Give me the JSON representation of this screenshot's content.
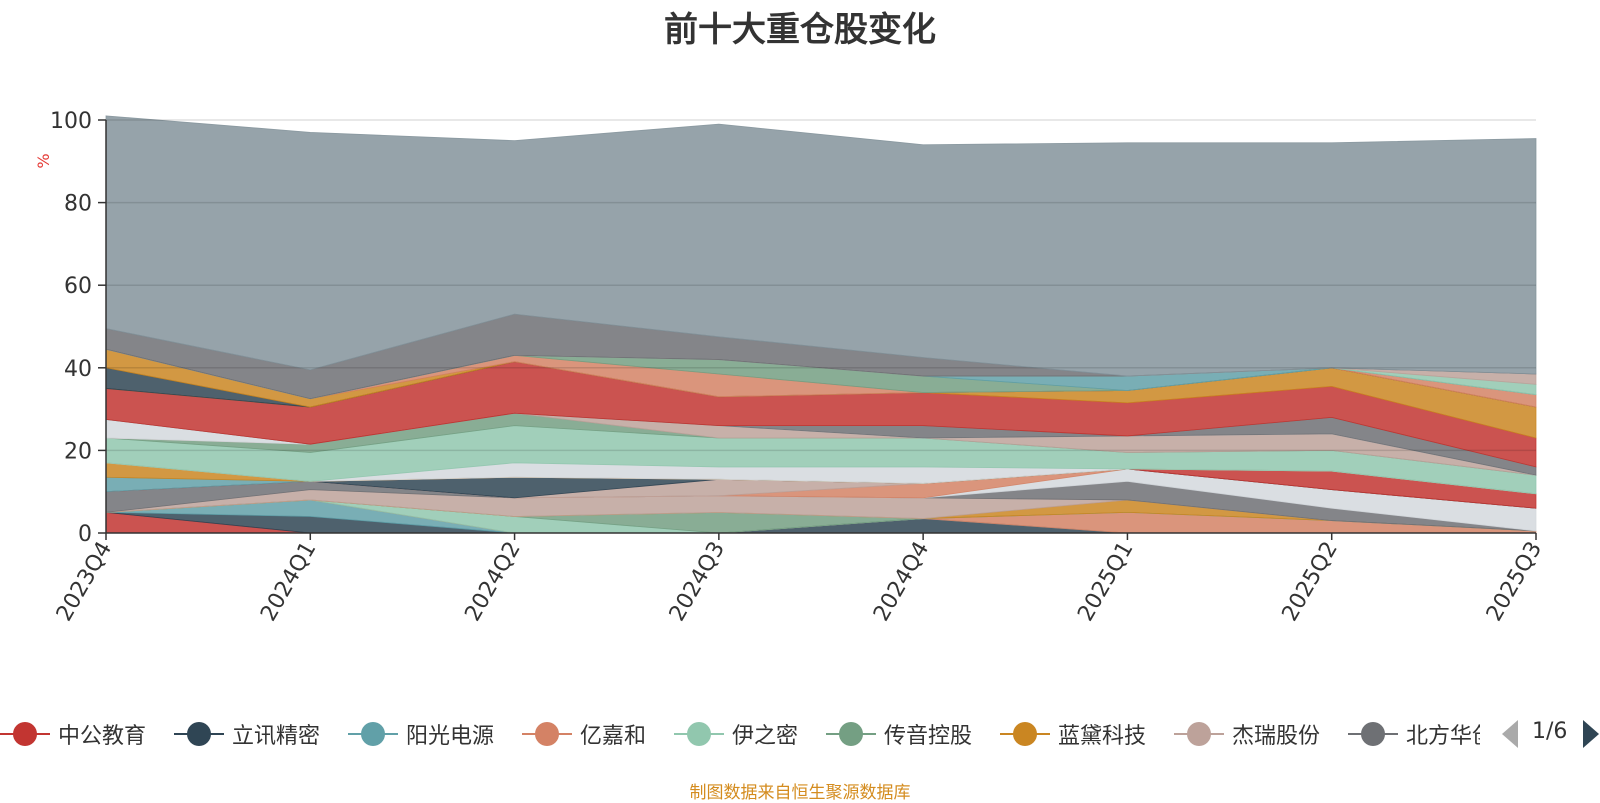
{
  "title": "前十大重仓股变化",
  "footer": "制图数据来自恒生聚源数据库",
  "pager": {
    "text": "1/6"
  },
  "legend": [
    {
      "name": "中公教育",
      "color": "#c23531"
    },
    {
      "name": "立讯精密",
      "color": "#2f4554"
    },
    {
      "name": "阳光电源",
      "color": "#61a0a8"
    },
    {
      "name": "亿嘉和",
      "color": "#d48265"
    },
    {
      "name": "伊之密",
      "color": "#91c7ae"
    },
    {
      "name": "传音控股",
      "color": "#749f83"
    },
    {
      "name": "蓝黛科技",
      "color": "#ca8622"
    },
    {
      "name": "杰瑞股份",
      "color": "#bda29a"
    },
    {
      "name": "北方华创",
      "color": "#6e7074"
    }
  ],
  "chart_data": {
    "type": "area",
    "title": "前十大重仓股变化",
    "xlabel": "",
    "ylabel": "%",
    "ylim": [
      0,
      100
    ],
    "y_ticks": [
      "0",
      "20",
      "40",
      "60",
      "80",
      "100"
    ],
    "grid": true,
    "stacked": true,
    "categories": [
      "2023Q4",
      "2024Q1",
      "2024Q2",
      "2024Q3",
      "2024Q4",
      "2025Q1",
      "2025Q2",
      "2025Q3"
    ],
    "series": [
      {
        "color": "#c23531",
        "values": [
          5,
          0,
          0,
          0,
          0,
          0,
          0,
          0
        ]
      },
      {
        "color": "#2f4554",
        "values": [
          0,
          4,
          0,
          0,
          3.5,
          0,
          0,
          0
        ]
      },
      {
        "color": "#61a0a8",
        "values": [
          0,
          4,
          0,
          0,
          0,
          0,
          0,
          0
        ]
      },
      {
        "color": "#d48265",
        "values": [
          0,
          0,
          0,
          0,
          0,
          5,
          3,
          0.5
        ]
      },
      {
        "color": "#91c7ae",
        "values": [
          0,
          0,
          4,
          0,
          0,
          0,
          0,
          0
        ]
      },
      {
        "color": "#749f83",
        "values": [
          0,
          0,
          0,
          5,
          0,
          0,
          0,
          0
        ]
      },
      {
        "color": "#ca8622",
        "values": [
          0,
          0,
          0,
          0,
          0,
          3,
          0,
          0
        ]
      },
      {
        "color": "#bda29a",
        "values": [
          0,
          2.5,
          4.5,
          4,
          5,
          0,
          0,
          0
        ]
      },
      {
        "color": "#6e7074",
        "values": [
          5,
          2,
          0,
          0,
          0,
          4.5,
          3,
          0
        ]
      },
      {
        "color": "#d4d8dd",
        "values": [
          0,
          0,
          0,
          0,
          0,
          3,
          4.5,
          5.5
        ]
      },
      {
        "color": "#d48265",
        "values": [
          0,
          0,
          0,
          0,
          3.5,
          0,
          0,
          0
        ]
      },
      {
        "color": "#bda29a",
        "values": [
          0,
          0,
          0,
          4,
          0,
          0,
          0,
          0
        ]
      },
      {
        "color": "#2f4554",
        "values": [
          0,
          0,
          5,
          0,
          0,
          0,
          0,
          0
        ]
      },
      {
        "color": "#c23531",
        "values": [
          0,
          0,
          0,
          0,
          0,
          0,
          4.5,
          3.5
        ]
      },
      {
        "color": "#61a0a8",
        "values": [
          3.5,
          0,
          0,
          0,
          0,
          0,
          0,
          0
        ]
      },
      {
        "color": "#ca8622",
        "values": [
          3.5,
          0,
          0,
          0,
          0,
          0,
          0,
          0
        ]
      },
      {
        "color": "#d4d8dd",
        "values": [
          0,
          0,
          3.5,
          3,
          4,
          0,
          0,
          0
        ]
      },
      {
        "color": "#91c7ae",
        "values": [
          6,
          7,
          9,
          7,
          7,
          4,
          5,
          4.5
        ]
      },
      {
        "color": "#749f83",
        "values": [
          0,
          2,
          3,
          0,
          0,
          0,
          0,
          0
        ]
      },
      {
        "color": "#bda29a",
        "values": [
          0,
          0,
          0,
          3,
          0,
          4,
          4,
          0
        ]
      },
      {
        "color": "#d4d8dd",
        "values": [
          4.5,
          0,
          0,
          0,
          0,
          0,
          0,
          0
        ]
      },
      {
        "color": "#6e7074",
        "values": [
          0,
          0,
          0,
          0,
          3,
          0,
          4,
          2
        ]
      },
      {
        "color": "#c23531",
        "values": [
          7.5,
          9,
          12.5,
          7,
          8,
          8,
          7.5,
          7
        ]
      },
      {
        "color": "#ca8622",
        "values": [
          0,
          0,
          0,
          0,
          0,
          3,
          4.5,
          7.5
        ]
      },
      {
        "color": "#2f4554",
        "values": [
          5,
          0,
          0,
          0,
          0,
          0,
          0,
          0
        ]
      },
      {
        "color": "#ca8622",
        "values": [
          4.5,
          2,
          0,
          0,
          0,
          0,
          0,
          0
        ]
      },
      {
        "color": "#d48265",
        "values": [
          0,
          0,
          1.5,
          5.5,
          0,
          0,
          0,
          3
        ]
      },
      {
        "color": "#749f83",
        "values": [
          0,
          0,
          0,
          3.5,
          4,
          0,
          0,
          0
        ]
      },
      {
        "color": "#61a0a8",
        "values": [
          0,
          0,
          0,
          0,
          0,
          3.5,
          0,
          0
        ]
      },
      {
        "color": "#91c7ae",
        "values": [
          0,
          0,
          0,
          0,
          0,
          0,
          0,
          2.5
        ]
      },
      {
        "color": "#bda29a",
        "values": [
          0,
          0,
          0,
          0,
          0,
          0,
          0,
          2.5
        ]
      },
      {
        "color": "#6e7074",
        "values": [
          5,
          7,
          10,
          5.5,
          4.5,
          0,
          0,
          0
        ]
      },
      {
        "color": "#84939b",
        "values": [
          51.5,
          57.5,
          42,
          51.5,
          51.5,
          56.5,
          54.5,
          57
        ]
      }
    ]
  }
}
